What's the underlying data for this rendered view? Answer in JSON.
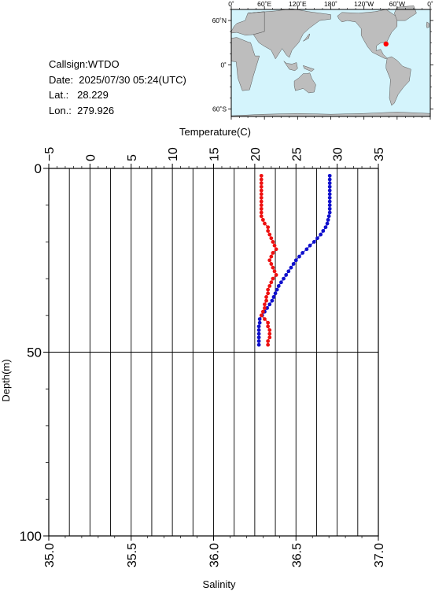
{
  "info": {
    "callsign": "Callsign:WTDO",
    "date": "Date:  2025/07/30 05:24(UTC)",
    "lat": "Lat.:   28.229",
    "lon": "Lon.:  279.926"
  },
  "map": {
    "lon_ticks": [
      "0˚",
      "60˚E",
      "120˚E",
      "180˚",
      "120˚W",
      "60˚W",
      "0˚"
    ],
    "lat_ticks": [
      "60˚N",
      "0˚",
      "60˚S"
    ],
    "ocean_color": "#d4f4fc",
    "land_color": "#bdbdbd",
    "marker": {
      "lon": 279.926,
      "lat": 28.229,
      "color": "#ff0000"
    }
  },
  "chart_data": {
    "type": "scatter",
    "y_axis": {
      "label": "Depth(m)",
      "range": [
        0,
        100
      ],
      "ticks": [
        "0",
        "50",
        "100"
      ],
      "inverted": true
    },
    "temperature_axis": {
      "label": "Temperature(C)",
      "range": [
        -5,
        35
      ],
      "ticks": [
        "−5",
        "0",
        "5",
        "10",
        "15",
        "20",
        "25",
        "30",
        "35"
      ],
      "position": "top"
    },
    "salinity_axis": {
      "label": "Salinity",
      "range": [
        35.0,
        37.0
      ],
      "ticks": [
        "35.0",
        "35.5",
        "36.0",
        "36.5",
        "37.0"
      ],
      "position": "bottom"
    },
    "grid": true,
    "series": [
      {
        "quantity": "temperature",
        "color": "#1010cc",
        "depth": [
          2,
          3,
          4,
          5,
          6,
          7,
          8,
          9,
          10,
          11,
          12,
          13,
          14,
          15,
          16,
          17,
          18,
          19,
          20,
          21,
          22,
          23,
          24,
          25,
          26,
          27,
          28,
          29,
          30,
          31,
          32,
          33,
          34,
          35,
          36,
          37,
          38,
          39,
          40,
          41,
          42,
          43,
          44,
          45,
          46,
          47,
          48
        ],
        "values": [
          29.1,
          29.1,
          29.1,
          29.1,
          29.1,
          29.1,
          29.1,
          29.1,
          29.1,
          29.1,
          29.1,
          29.0,
          28.9,
          28.8,
          28.6,
          28.3,
          28.0,
          27.6,
          27.2,
          26.7,
          26.3,
          25.8,
          25.4,
          25.0,
          24.7,
          24.4,
          24.1,
          23.8,
          23.5,
          23.2,
          22.9,
          22.7,
          22.5,
          22.3,
          22.1,
          21.8,
          21.5,
          21.2,
          20.9,
          20.6,
          20.6,
          20.5,
          20.5,
          20.5,
          20.5,
          20.5,
          20.5
        ]
      },
      {
        "quantity": "salinity",
        "color": "#ee1111",
        "depth": [
          2,
          3,
          4,
          5,
          6,
          7,
          8,
          9,
          10,
          11,
          12,
          13,
          14,
          15,
          16,
          17,
          18,
          19,
          20,
          21,
          22,
          23,
          24,
          25,
          26,
          27,
          28,
          29,
          30,
          31,
          32,
          33,
          34,
          35,
          36,
          37,
          38,
          39,
          40,
          41,
          42,
          43,
          44,
          45,
          46,
          47,
          48
        ],
        "values": [
          36.29,
          36.29,
          36.29,
          36.29,
          36.29,
          36.29,
          36.29,
          36.29,
          36.29,
          36.29,
          36.29,
          36.29,
          36.3,
          36.31,
          36.33,
          36.33,
          36.34,
          36.35,
          36.36,
          36.37,
          36.38,
          36.36,
          36.35,
          36.34,
          36.35,
          36.36,
          36.37,
          36.38,
          36.36,
          36.35,
          36.34,
          36.33,
          36.33,
          36.32,
          36.32,
          36.31,
          36.31,
          36.3,
          36.29,
          36.31,
          36.33,
          36.33,
          36.34,
          36.34,
          36.34,
          36.33,
          36.33
        ]
      }
    ]
  }
}
